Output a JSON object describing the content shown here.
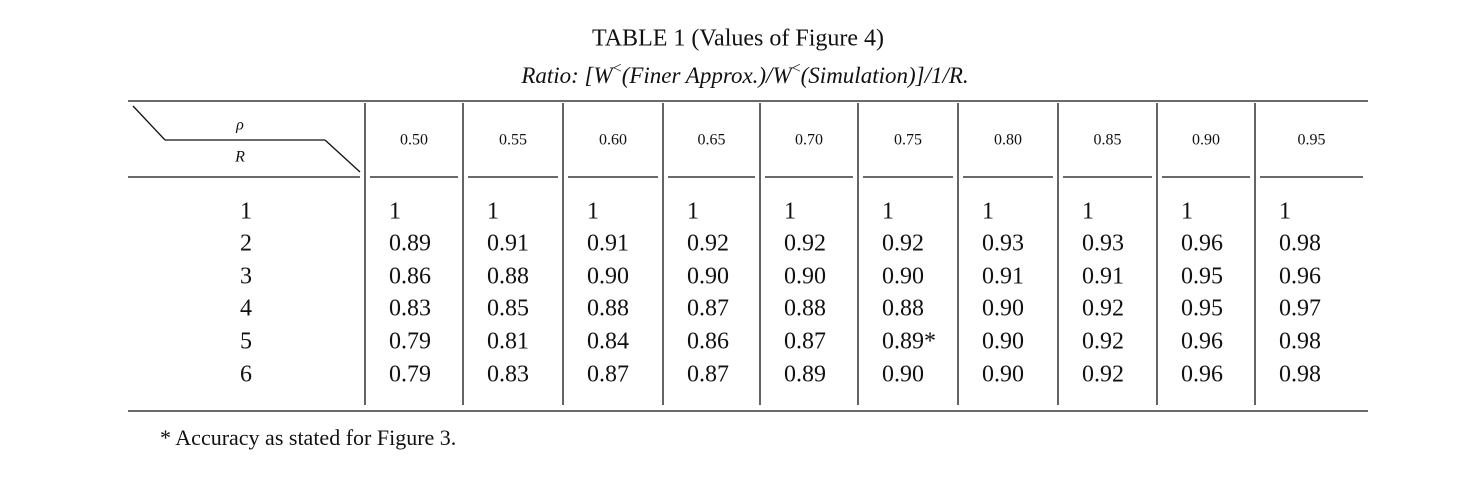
{
  "title": "TABLE 1 (Values of Figure 4)",
  "subtitle": [
    "Ratio: [W",
    "<",
    "(Finer Approx.)/W",
    "<",
    "(Simulation)]/1/R."
  ],
  "table": {
    "corner_top": "ρ",
    "corner_bottom": "R",
    "columns": [
      "0.50",
      "0.55",
      "0.60",
      "0.65",
      "0.70",
      "0.75",
      "0.80",
      "0.85",
      "0.90",
      "0.95"
    ],
    "rows": [
      [
        "1",
        "1",
        "1",
        "1",
        "1",
        "1",
        "1",
        "1",
        "1",
        "1",
        "1"
      ],
      [
        "2",
        "0.89",
        "0.91",
        "0.91",
        "0.92",
        "0.92",
        "0.92",
        "0.93",
        "0.93",
        "0.96",
        "0.98"
      ],
      [
        "3",
        "0.86",
        "0.88",
        "0.90",
        "0.90",
        "0.90",
        "0.90",
        "0.91",
        "0.91",
        "0.95",
        "0.96"
      ],
      [
        "4",
        "0.83",
        "0.85",
        "0.88",
        "0.87",
        "0.88",
        "0.88",
        "0.90",
        "0.92",
        "0.95",
        "0.97"
      ],
      [
        "5",
        "0.79",
        "0.81",
        "0.84",
        "0.86",
        "0.87",
        "0.89*",
        "0.90",
        "0.92",
        "0.96",
        "0.98"
      ],
      [
        "6",
        "0.79",
        "0.83",
        "0.87",
        "0.87",
        "0.89",
        "0.90",
        "0.90",
        "0.92",
        "0.96",
        "0.98"
      ]
    ]
  },
  "footnote": "* Accuracy as stated for Figure 3."
}
